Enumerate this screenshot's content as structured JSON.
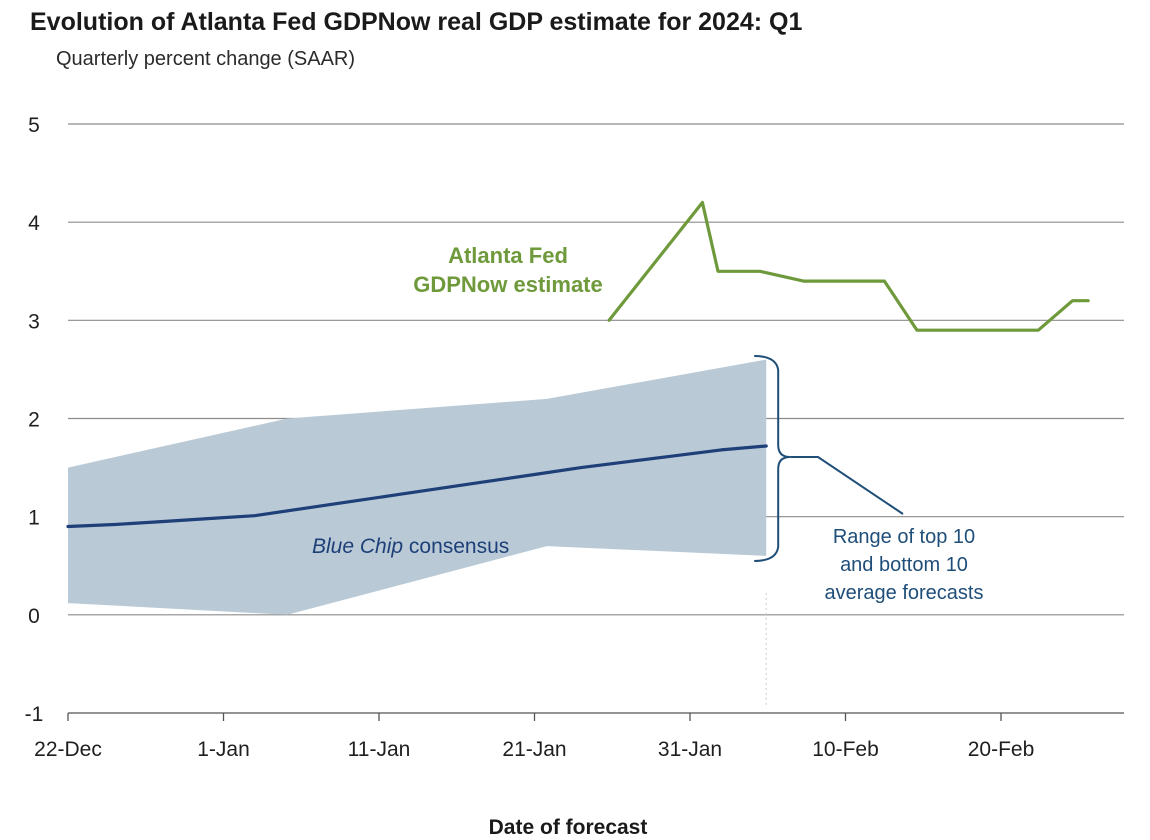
{
  "title": "Evolution of Atlanta Fed GDPNow real GDP estimate for 2024: Q1",
  "subtitle": "Quarterly percent change (SAAR)",
  "colors": {
    "gdpnow": "#6f9a3b",
    "consensus": "#1e3f78",
    "range_fill": "#b9cad6",
    "range_annotation": "#1f4e79",
    "grid": "#8c8c8c",
    "axis": "#555555"
  },
  "chart_data": {
    "type": "line",
    "xlabel": "Date of forecast",
    "ylabel": "",
    "ylim": [
      -1,
      5
    ],
    "y_ticks": [
      -1,
      0,
      1,
      2,
      3,
      4,
      5
    ],
    "x_tick_labels": [
      "22-Dec",
      "1-Jan",
      "11-Jan",
      "21-Jan",
      "31-Jan",
      "10-Feb",
      "20-Feb"
    ],
    "x_tick_days": [
      0,
      10,
      20,
      30,
      40,
      50,
      60
    ],
    "x_unit": "days since 22-Dec-2023",
    "grid": "horizontal",
    "series": [
      {
        "name": "Atlanta Fed GDPNow estimate",
        "label_lines": [
          "Atlanta Fed",
          "GDPNow estimate"
        ],
        "x": [
          34.8,
          40.8,
          41.8,
          44.5,
          47.3,
          52.5,
          54.6,
          59.5,
          62.4,
          64.6,
          65.6
        ],
        "values": [
          3.0,
          4.2,
          3.5,
          3.5,
          3.4,
          3.4,
          2.9,
          2.9,
          2.9,
          3.2,
          3.2
        ]
      },
      {
        "name": "Blue Chip consensus",
        "label_italic": "Blue Chip",
        "label_rest": " consensus",
        "x": [
          0,
          3,
          6,
          9,
          12,
          15,
          18,
          21,
          24,
          27,
          30,
          33,
          36,
          39,
          42,
          44.9
        ],
        "values": [
          0.9,
          0.92,
          0.95,
          0.98,
          1.01,
          1.08,
          1.15,
          1.22,
          1.29,
          1.36,
          1.43,
          1.5,
          1.56,
          1.62,
          1.68,
          1.72
        ]
      }
    ],
    "range_band": {
      "name": "Range of top 10 and bottom 10 average forecasts",
      "label_lines": [
        "Range of top 10",
        "and bottom 10",
        "average forecasts"
      ],
      "x": [
        0,
        14.1,
        30.8,
        44.9
      ],
      "upper": [
        1.5,
        2.0,
        2.2,
        2.6
      ],
      "lower": [
        0.12,
        0.0,
        0.7,
        0.6
      ]
    }
  }
}
